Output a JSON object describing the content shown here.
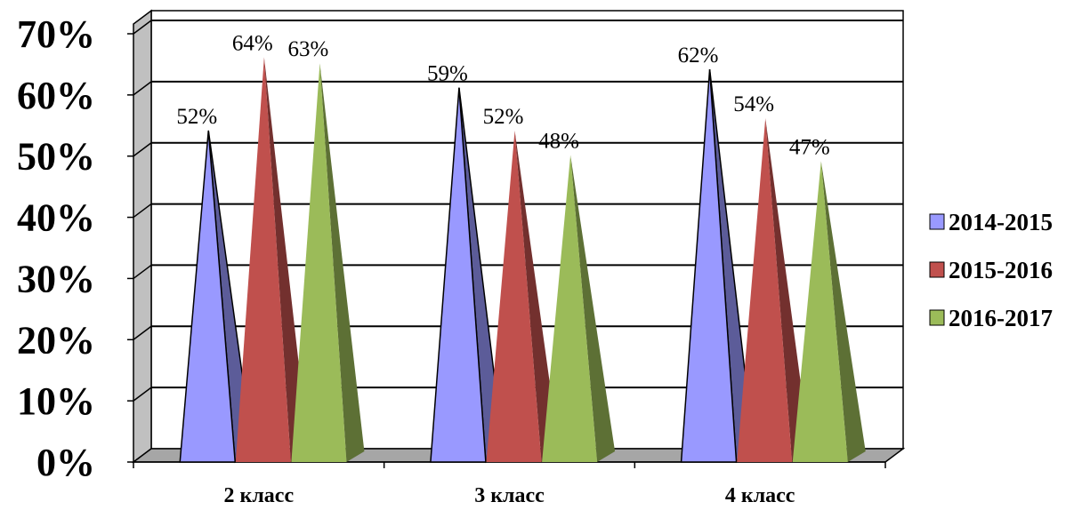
{
  "chart_data": {
    "type": "bar",
    "style": "3d-pyramid",
    "categories": [
      "2 класс",
      "3 класс",
      "4 класс"
    ],
    "series": [
      {
        "name": "2014-2015",
        "values": [
          52,
          59,
          62
        ],
        "labels": [
          "52%",
          "59%",
          "62%"
        ],
        "color": "#9999FF"
      },
      {
        "name": "2015-2016",
        "values": [
          64,
          52,
          54
        ],
        "labels": [
          "64%",
          "52%",
          "54%"
        ],
        "color": "#C0504D"
      },
      {
        "name": "2016-2017",
        "values": [
          63,
          48,
          47
        ],
        "labels": [
          "63%",
          "48%",
          "47%"
        ],
        "color": "#9BBB59"
      }
    ],
    "yticks": [
      "0%",
      "10%",
      "20%",
      "30%",
      "40%",
      "50%",
      "60%",
      "70%"
    ],
    "ylim": [
      0,
      70
    ],
    "grid": true,
    "legend_position": "right",
    "title": "",
    "xlabel": "",
    "ylabel": ""
  }
}
